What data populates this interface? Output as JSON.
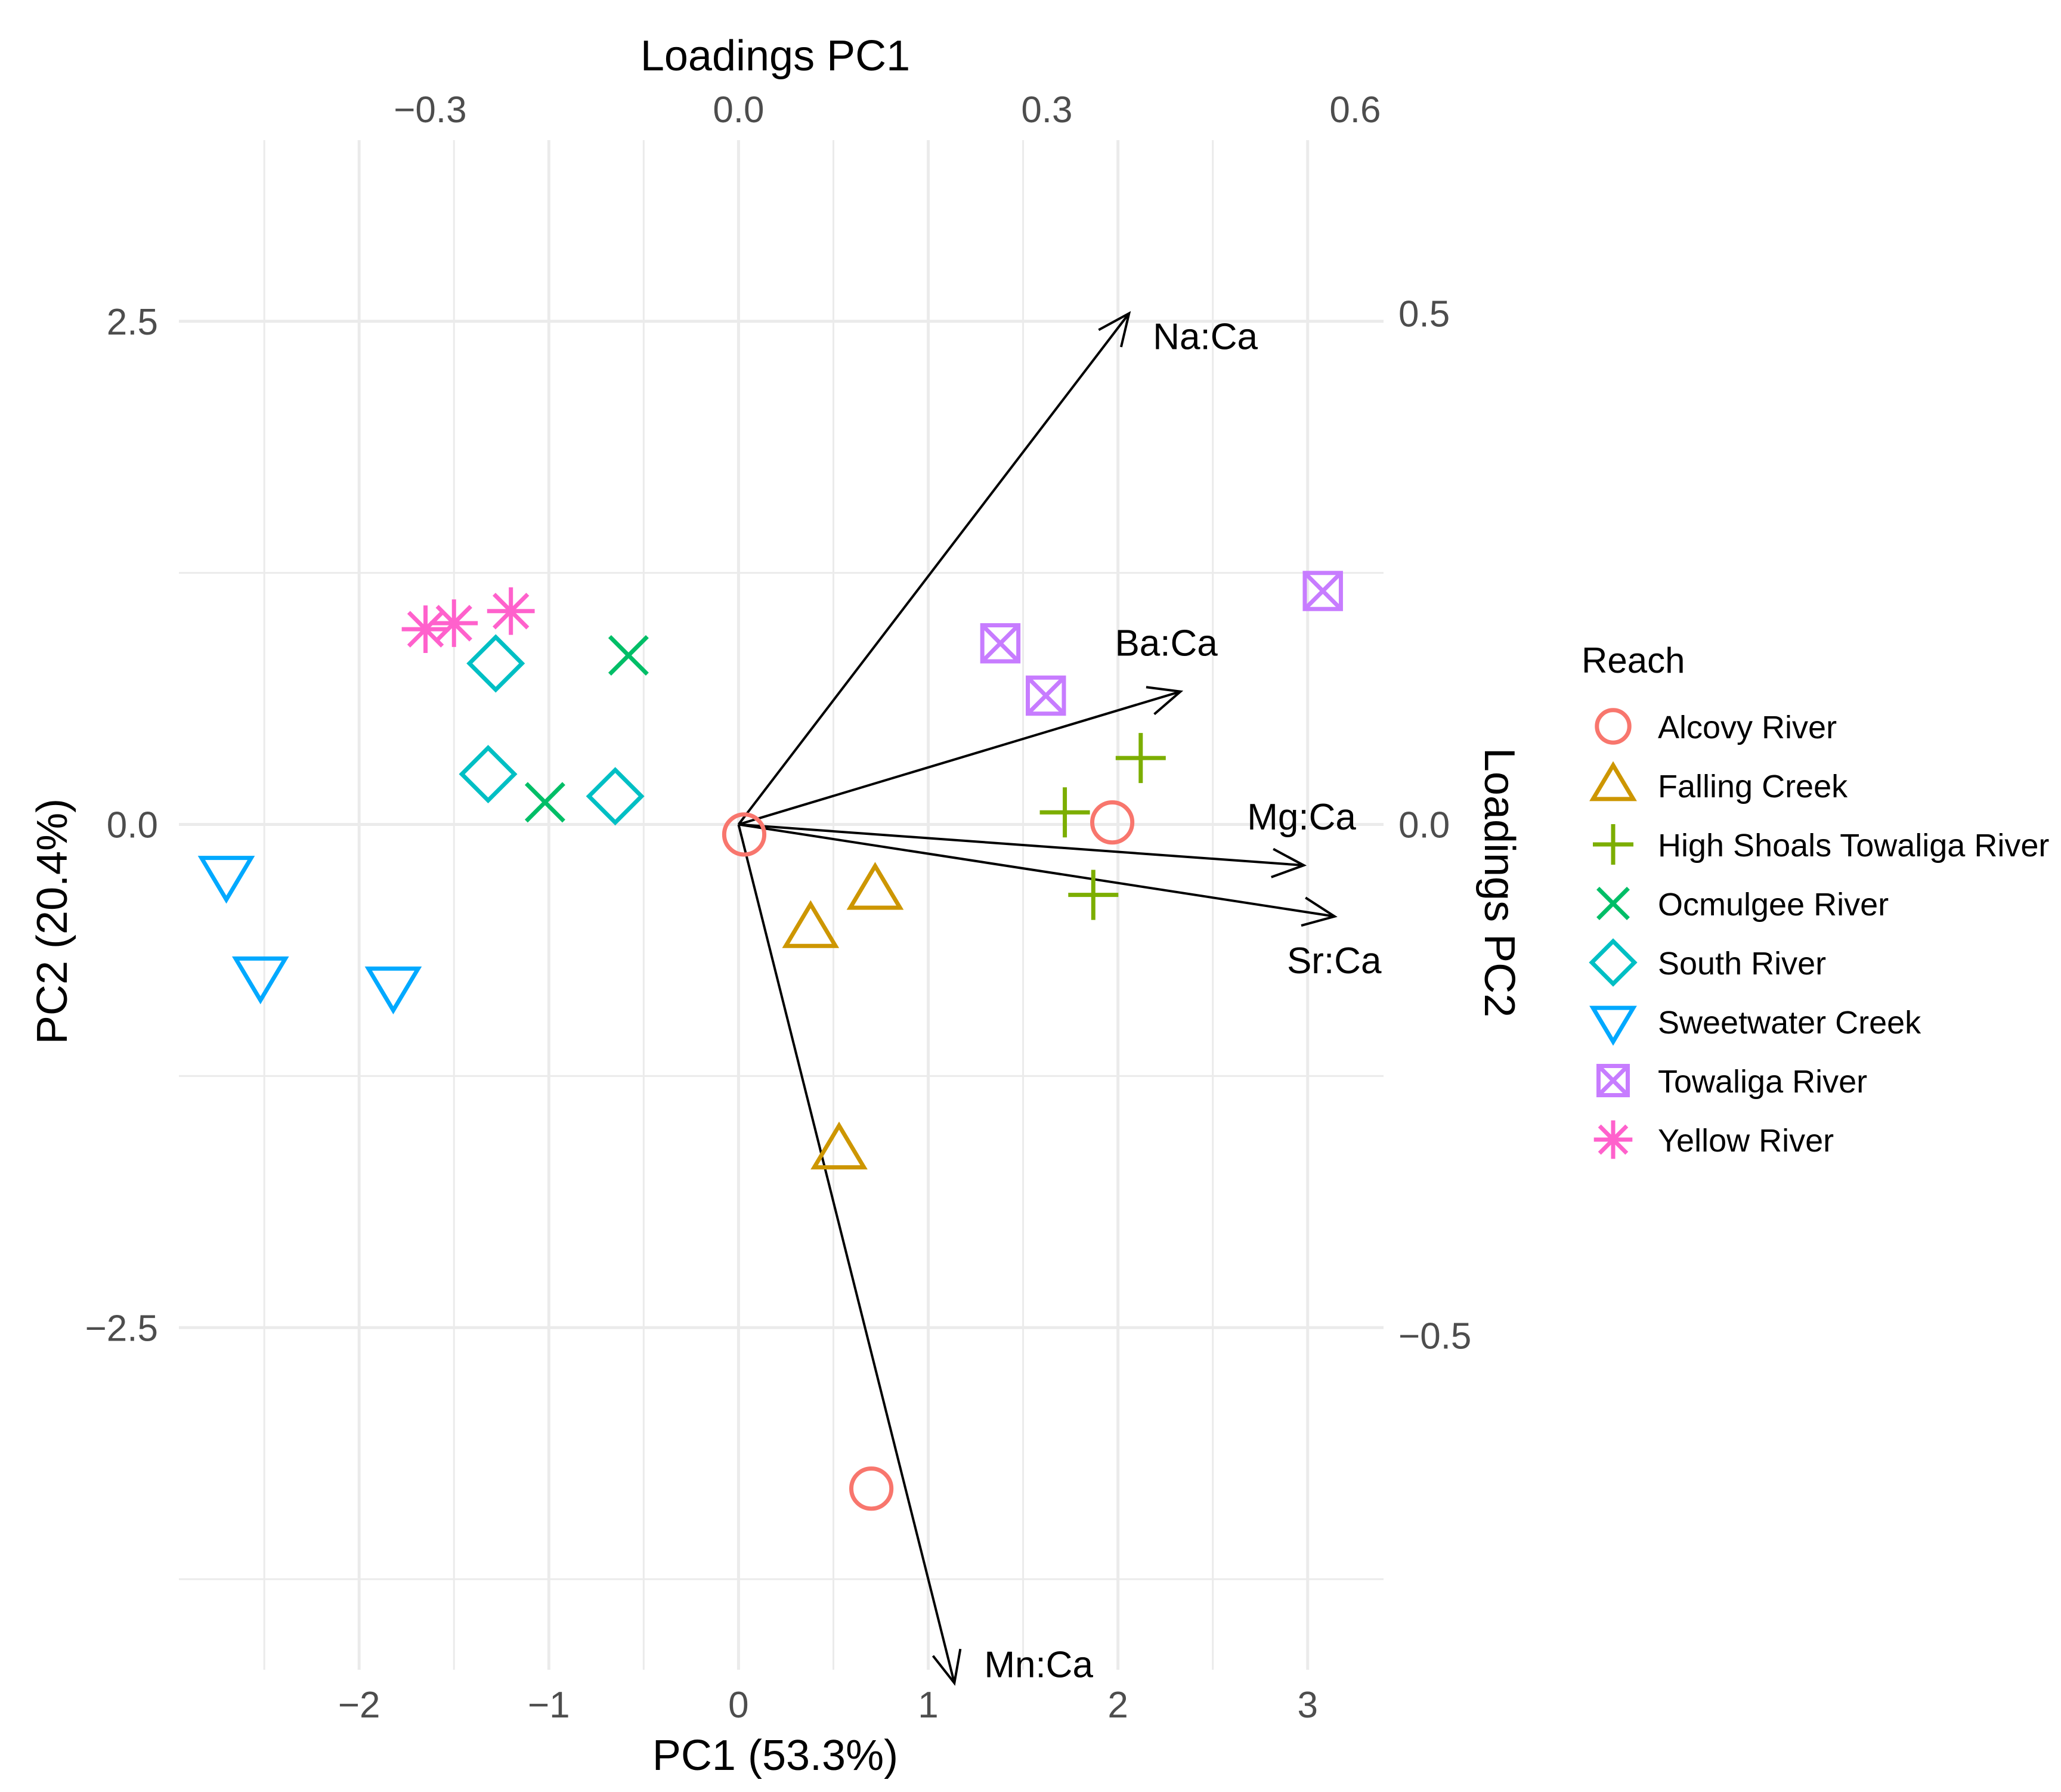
{
  "chart_data": {
    "type": "scatter",
    "subtype": "pca-biplot",
    "title": "",
    "xlabel": "PC1 (53.3%)",
    "ylabel": "PC2 (20.4%)",
    "top_axis_label": "Loadings PC1",
    "right_axis_label": "Loadings PC2",
    "xlim": [
      -2.95,
      3.4
    ],
    "ylim": [
      -4.2,
      3.4
    ],
    "x_ticks": [
      -2,
      -1,
      0,
      1,
      2,
      3
    ],
    "x_tick_labels": [
      "−2",
      "−1",
      "0",
      "1",
      "2",
      "3"
    ],
    "y_ticks": [
      -2.5,
      0,
      2.5
    ],
    "y_tick_labels": [
      "−2.5",
      "0.0",
      "2.5"
    ],
    "top_ticks": [
      -0.3,
      0.0,
      0.3,
      0.6
    ],
    "top_tick_labels": [
      "−0.3",
      "0.0",
      "0.3",
      "0.6"
    ],
    "right_ticks": [
      0.5,
      0.0,
      -0.5
    ],
    "right_tick_labels": [
      "0.5",
      "0.0",
      "−0.5"
    ],
    "grid": true,
    "legend_title": "Reach",
    "legend_position": "right",
    "series": [
      {
        "name": "Alcovy River",
        "shape": "circle",
        "color": "#F8766D",
        "points": [
          [
            0.03,
            -0.05
          ],
          [
            1.97,
            0.01
          ],
          [
            0.7,
            -3.3
          ]
        ]
      },
      {
        "name": "Falling Creek",
        "shape": "triangle",
        "color": "#CD9600",
        "points": [
          [
            0.72,
            -0.33
          ],
          [
            0.38,
            -0.52
          ],
          [
            0.53,
            -1.62
          ]
        ]
      },
      {
        "name": "High Shoals Towaliga River",
        "shape": "plus",
        "color": "#7CAE00",
        "points": [
          [
            2.12,
            0.33
          ],
          [
            1.72,
            0.06
          ],
          [
            1.87,
            -0.35
          ]
        ]
      },
      {
        "name": "Ocmulgee River",
        "shape": "cross",
        "color": "#00BE67",
        "points": [
          [
            -0.58,
            0.84
          ],
          [
            -1.02,
            0.11
          ]
        ]
      },
      {
        "name": "South River",
        "shape": "diamond",
        "color": "#00BFC4",
        "points": [
          [
            -1.28,
            0.8
          ],
          [
            -1.32,
            0.25
          ],
          [
            -0.65,
            0.14
          ]
        ]
      },
      {
        "name": "Sweetwater Creek",
        "shape": "triangle-down",
        "color": "#00A9FF",
        "points": [
          [
            -2.7,
            -0.25
          ],
          [
            -2.52,
            -0.75
          ],
          [
            -1.82,
            -0.8
          ]
        ]
      },
      {
        "name": "Towaliga River",
        "shape": "boxcross",
        "color": "#C77CFF",
        "points": [
          [
            1.38,
            0.9
          ],
          [
            1.62,
            0.64
          ],
          [
            3.08,
            1.16
          ]
        ]
      },
      {
        "name": "Yellow River",
        "shape": "asterisk",
        "color": "#FF61CC",
        "points": [
          [
            -1.65,
            0.97
          ],
          [
            -1.5,
            1.0
          ],
          [
            -1.2,
            1.06
          ]
        ]
      }
    ],
    "loadings": [
      {
        "label": "Na:Ca",
        "x": 0.38,
        "y": 0.5
      },
      {
        "label": "Ba:Ca",
        "x": 0.43,
        "y": 0.13
      },
      {
        "label": "Mg:Ca",
        "x": 0.55,
        "y": -0.04
      },
      {
        "label": "Sr:Ca",
        "x": 0.58,
        "y": -0.09
      },
      {
        "label": "Mn:Ca",
        "x": 0.21,
        "y": -0.84
      }
    ]
  }
}
